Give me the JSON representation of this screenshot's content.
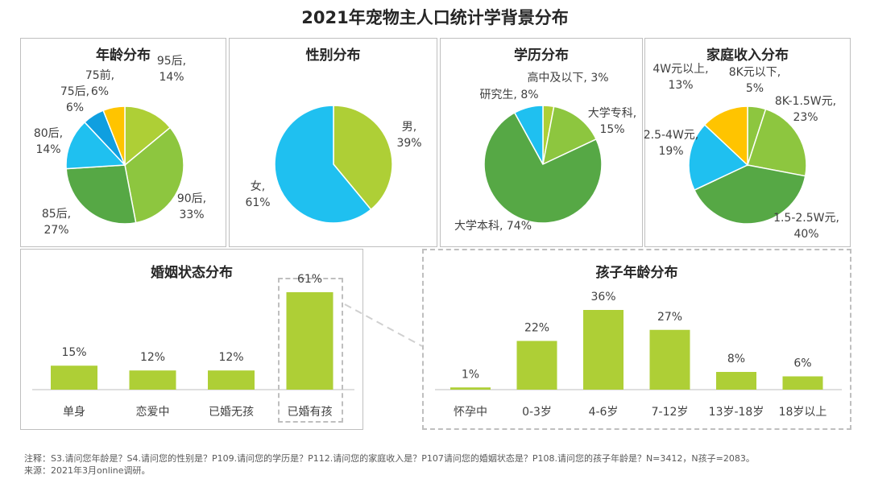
{
  "page_title": "2021年宠物主人口统计学背景分布",
  "colors": {
    "lime": "#aecf36",
    "green_light": "#8dc63f",
    "green": "#6bb244",
    "green_dark": "#56a845",
    "sky": "#1fc0f0",
    "blue": "#0f9fe0",
    "yellow": "#ffc400"
  },
  "chart_data": [
    {
      "type": "pie",
      "title": "年龄分布",
      "slices": [
        {
          "name": "95后",
          "value": 14,
          "label_line1": "95后,",
          "label_line2": "14%"
        },
        {
          "name": "90后",
          "value": 33,
          "label_line1": "90后,",
          "label_line2": "33%"
        },
        {
          "name": "85后",
          "value": 27,
          "label_line1": "85后,",
          "label_line2": "27%"
        },
        {
          "name": "80后",
          "value": 14,
          "label_line1": "80后,",
          "label_line2": "14%"
        },
        {
          "name": "75后",
          "value": 6,
          "label_line1": "75后,",
          "label_line2": "6%"
        },
        {
          "name": "75前",
          "value": 6,
          "label_line1": "75前,",
          "label_line2": "6%"
        }
      ]
    },
    {
      "type": "pie",
      "title": "性别分布",
      "slices": [
        {
          "name": "男",
          "value": 39,
          "label_line1": "男,",
          "label_line2": "39%"
        },
        {
          "name": "女",
          "value": 61,
          "label_line1": "女,",
          "label_line2": "61%"
        }
      ]
    },
    {
      "type": "pie",
      "title": "学历分布",
      "slices": [
        {
          "name": "高中及以下",
          "value": 3,
          "label_line1": "高中及以下, 3%"
        },
        {
          "name": "大学专科",
          "value": 15,
          "label_line1": "大学专科,",
          "label_line2": "15%"
        },
        {
          "name": "大学本科",
          "value": 74,
          "label_line1": "大学本科, 74%"
        },
        {
          "name": "研究生",
          "value": 8,
          "label_line1": "研究生, 8%"
        }
      ]
    },
    {
      "type": "pie",
      "title": "家庭收入分布",
      "slices": [
        {
          "name": "8K元以下",
          "value": 5,
          "label_line1": "8K元以下,",
          "label_line2": "5%"
        },
        {
          "name": "8K-1.5W元",
          "value": 23,
          "label_line1": "8K-1.5W元,",
          "label_line2": "23%"
        },
        {
          "name": "1.5-2.5W元",
          "value": 40,
          "label_line1": "1.5-2.5W元,",
          "label_line2": "40%"
        },
        {
          "name": "2.5-4W元",
          "value": 19,
          "label_line1": "2.5-4W元,",
          "label_line2": "19%"
        },
        {
          "name": "4W元以上",
          "value": 13,
          "label_line1": "4W元以上,",
          "label_line2": "13%"
        }
      ]
    },
    {
      "type": "bar",
      "title": "婚姻状态分布",
      "categories": [
        "单身",
        "恋爱中",
        "已婚无孩",
        "已婚有孩"
      ],
      "values": [
        15,
        12,
        12,
        61
      ],
      "value_labels": [
        "15%",
        "12%",
        "12%",
        "61%"
      ],
      "ylim": [
        0,
        65
      ]
    },
    {
      "type": "bar",
      "title": "孩子年龄分布",
      "categories": [
        "怀孕中",
        "0-3岁",
        "4-6岁",
        "7-12岁",
        "13岁-18岁",
        "18岁以上"
      ],
      "values": [
        1,
        22,
        36,
        27,
        8,
        6
      ],
      "value_labels": [
        "1%",
        "22%",
        "36%",
        "27%",
        "8%",
        "6%"
      ],
      "ylim": [
        0,
        40
      ]
    }
  ],
  "footnote": "注释：S3.请问您年龄是？S4.请问您的性别是？P109.请问您的学历是？P112.请问您的家庭收入是？P107请问您的婚姻状态是？P108.请问您的孩子年龄是？N=3412，N孩子=2083。",
  "source": "来源：2021年3月online调研。"
}
